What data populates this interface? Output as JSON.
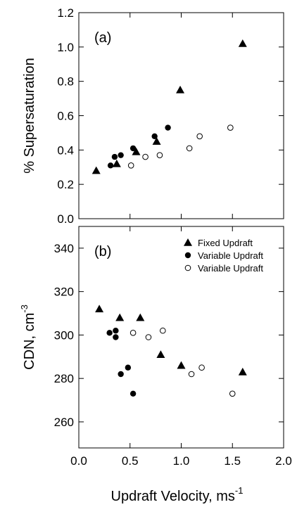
{
  "chart_data": [
    {
      "panel": "(a)",
      "type": "scatter",
      "ylabel": "% Supersaturation",
      "xlabel": "",
      "xlim": [
        0.0,
        2.0
      ],
      "ylim": [
        0.0,
        1.2
      ],
      "yticks": [
        "0.0",
        "0.2",
        "0.4",
        "0.6",
        "0.8",
        "1.0",
        "1.2"
      ],
      "xticks": [],
      "series": [
        {
          "marker": "filled-triangle",
          "points": [
            [
              0.17,
              0.28
            ],
            [
              0.37,
              0.32
            ],
            [
              0.56,
              0.39
            ],
            [
              0.76,
              0.45
            ],
            [
              0.99,
              0.75
            ],
            [
              1.6,
              1.02
            ]
          ]
        },
        {
          "marker": "filled-circle",
          "points": [
            [
              0.31,
              0.31
            ],
            [
              0.35,
              0.36
            ],
            [
              0.41,
              0.37
            ],
            [
              0.53,
              0.41
            ],
            [
              0.74,
              0.48
            ],
            [
              0.87,
              0.53
            ]
          ]
        },
        {
          "marker": "open-circle",
          "points": [
            [
              0.51,
              0.31
            ],
            [
              0.65,
              0.36
            ],
            [
              0.79,
              0.37
            ],
            [
              1.08,
              0.41
            ],
            [
              1.18,
              0.48
            ],
            [
              1.48,
              0.53
            ]
          ]
        }
      ]
    },
    {
      "panel": "(b)",
      "type": "scatter",
      "ylabel": "CDN, cm",
      "ylabel_sup": "-3",
      "xlabel": "Updraft Velocity, ms",
      "xlabel_sup": "-1",
      "xlim": [
        0.0,
        2.0
      ],
      "ylim": [
        248,
        350
      ],
      "yticks": [
        "260",
        "280",
        "300",
        "320",
        "340"
      ],
      "xticks": [
        "0.0",
        "0.5",
        "1.0",
        "1.5",
        "2.0"
      ],
      "legend_position": "top-right",
      "series": [
        {
          "name": "Fixed Updraft",
          "marker": "filled-triangle",
          "points": [
            [
              0.2,
              312
            ],
            [
              0.4,
              308
            ],
            [
              0.6,
              308
            ],
            [
              0.8,
              291
            ],
            [
              1.0,
              286
            ],
            [
              1.6,
              283
            ]
          ]
        },
        {
          "name": "Variable Updraft",
          "marker": "filled-circle",
          "points": [
            [
              0.3,
              301
            ],
            [
              0.36,
              302
            ],
            [
              0.36,
              299
            ],
            [
              0.41,
              282
            ],
            [
              0.48,
              285
            ],
            [
              0.53,
              273
            ]
          ]
        },
        {
          "name": "Variable Updraft",
          "marker": "open-circle",
          "points": [
            [
              0.53,
              301
            ],
            [
              0.68,
              299
            ],
            [
              0.82,
              302
            ],
            [
              1.1,
              282
            ],
            [
              1.2,
              285
            ],
            [
              1.5,
              273
            ]
          ]
        }
      ]
    }
  ]
}
